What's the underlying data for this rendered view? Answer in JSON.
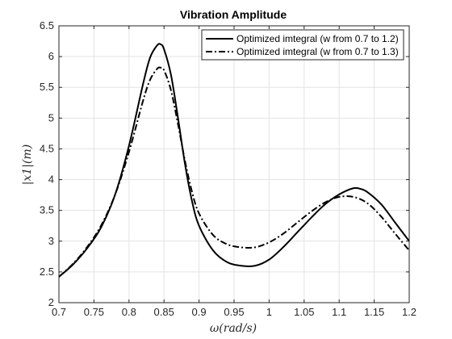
{
  "chart_data": {
    "type": "line",
    "title": "Vibration Amplitude",
    "xlabel": "ω(rad/s)",
    "ylabel": "|x1|(m)",
    "xlim": [
      0.7,
      1.2
    ],
    "ylim": [
      2,
      6.5
    ],
    "xticks": [
      "0.7",
      "0.75",
      "0.8",
      "0.85",
      "0.9",
      "0.95",
      "1",
      "1.05",
      "1.1",
      "1.15",
      "1.2"
    ],
    "yticks": [
      "2",
      "2.5",
      "3",
      "3.5",
      "4",
      "4.5",
      "5",
      "5.5",
      "6",
      "6.5"
    ],
    "grid": true,
    "legend_position": "top-right",
    "series": [
      {
        "name": "Optimized imtegral (w from 0.7 to 1.2)",
        "style": "solid",
        "color": "#000000",
        "x": [
          0.7,
          0.72,
          0.74,
          0.76,
          0.78,
          0.8,
          0.82,
          0.83,
          0.84,
          0.845,
          0.85,
          0.86,
          0.87,
          0.88,
          0.89,
          0.9,
          0.92,
          0.94,
          0.96,
          0.98,
          1.0,
          1.02,
          1.04,
          1.06,
          1.08,
          1.1,
          1.12,
          1.13,
          1.14,
          1.16,
          1.18,
          1.2
        ],
        "y": [
          2.42,
          2.62,
          2.88,
          3.22,
          3.75,
          4.55,
          5.55,
          5.98,
          6.18,
          6.2,
          6.12,
          5.7,
          5.0,
          4.25,
          3.65,
          3.25,
          2.85,
          2.66,
          2.6,
          2.6,
          2.7,
          2.9,
          3.14,
          3.38,
          3.6,
          3.76,
          3.86,
          3.85,
          3.8,
          3.6,
          3.3,
          3.0
        ]
      },
      {
        "name": "Optimized imtegral (w from 0.7 to 1.3)",
        "style": "dash-dot",
        "color": "#000000",
        "x": [
          0.7,
          0.72,
          0.74,
          0.76,
          0.78,
          0.8,
          0.82,
          0.83,
          0.84,
          0.845,
          0.85,
          0.86,
          0.87,
          0.88,
          0.89,
          0.9,
          0.92,
          0.94,
          0.96,
          0.98,
          1.0,
          1.02,
          1.04,
          1.06,
          1.08,
          1.1,
          1.12,
          1.14,
          1.16,
          1.18,
          1.2
        ],
        "y": [
          2.42,
          2.63,
          2.9,
          3.25,
          3.75,
          4.45,
          5.28,
          5.62,
          5.8,
          5.82,
          5.78,
          5.45,
          4.9,
          4.3,
          3.8,
          3.45,
          3.1,
          2.95,
          2.9,
          2.9,
          2.98,
          3.12,
          3.3,
          3.48,
          3.63,
          3.72,
          3.72,
          3.62,
          3.4,
          3.12,
          2.85
        ]
      }
    ]
  }
}
